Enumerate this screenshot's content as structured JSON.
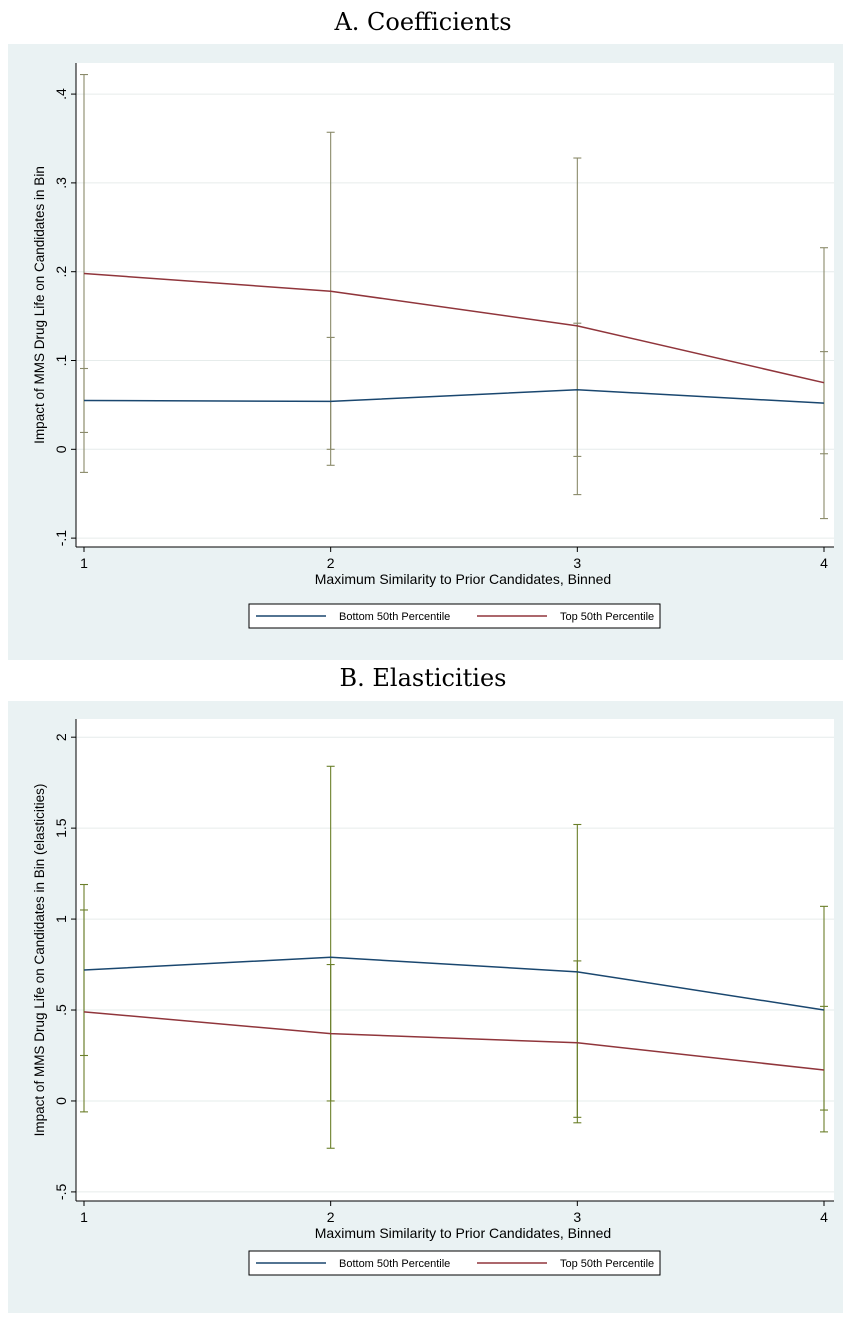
{
  "chart_data": [
    {
      "type": "line",
      "title": "A. Coefficients",
      "xlabel": "Maximum Similarity to Prior Candidates, Binned",
      "ylabel": "Impact of MMS Drug Life on Candidates in Bin",
      "x": [
        1,
        2,
        3,
        4
      ],
      "x_ticks": [
        1,
        2,
        3,
        4
      ],
      "x_tick_labels": [
        "1",
        "2",
        "3",
        "4"
      ],
      "ylim": [
        -0.11,
        0.435
      ],
      "y_ticks": [
        -0.1,
        0,
        0.1,
        0.2,
        0.3,
        0.4
      ],
      "y_tick_labels": [
        "-.1",
        "0",
        ".1",
        ".2",
        ".3",
        ".4"
      ],
      "grid": true,
      "legend_position": "bottom",
      "series": [
        {
          "name": "Bottom 50th Percentile",
          "color": "#1a476f",
          "values": [
            0.055,
            0.054,
            0.067,
            0.052
          ],
          "ci_low": [
            0.019,
            -0.018,
            -0.008,
            -0.005
          ],
          "ci_high": [
            0.091,
            0.126,
            0.142,
            0.11
          ]
        },
        {
          "name": "Top 50th Percentile",
          "color": "#90353b",
          "values": [
            0.198,
            0.178,
            0.139,
            0.075
          ],
          "ci_low": [
            -0.026,
            0.0,
            -0.051,
            -0.078
          ],
          "ci_high": [
            0.422,
            0.357,
            0.328,
            0.227
          ]
        }
      ],
      "whisker_color": "#8a8a6a"
    },
    {
      "type": "line",
      "title": "B. Elasticities",
      "xlabel": "Maximum Similarity to Prior Candidates, Binned",
      "ylabel": "Impact of MMS Drug Life on Candidates in Bin (elasticities)",
      "x": [
        1,
        2,
        3,
        4
      ],
      "x_ticks": [
        1,
        2,
        3,
        4
      ],
      "x_tick_labels": [
        "1",
        "2",
        "3",
        "4"
      ],
      "ylim": [
        -0.55,
        2.1
      ],
      "y_ticks": [
        -0.5,
        0,
        0.5,
        1,
        1.5,
        2
      ],
      "y_tick_labels": [
        "-.5",
        "0",
        ".5",
        "1",
        "1.5",
        "2"
      ],
      "grid": true,
      "legend_position": "bottom",
      "series": [
        {
          "name": "Bottom 50th Percentile",
          "color": "#1a476f",
          "values": [
            0.72,
            0.79,
            0.71,
            0.5
          ],
          "ci_low": [
            0.25,
            -0.26,
            -0.09,
            -0.05
          ],
          "ci_high": [
            1.19,
            1.84,
            1.52,
            1.07
          ]
        },
        {
          "name": "Top 50th Percentile",
          "color": "#90353b",
          "values": [
            0.49,
            0.37,
            0.32,
            0.17
          ],
          "ci_low": [
            -0.06,
            0.0,
            -0.12,
            -0.17
          ],
          "ci_high": [
            1.05,
            0.75,
            0.77,
            0.52
          ]
        }
      ],
      "whisker_color": "#6b7f2a"
    }
  ]
}
